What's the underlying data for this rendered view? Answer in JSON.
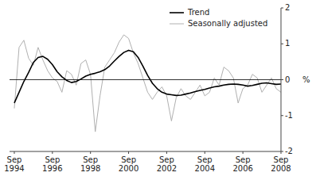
{
  "chart_data": {
    "type": "line",
    "title": "",
    "ylabel": "%",
    "categories": [
      "Sep\n1994",
      null,
      null,
      null,
      null,
      null,
      null,
      null,
      "Sep\n1996",
      null,
      null,
      null,
      null,
      null,
      null,
      null,
      "Sep\n1998",
      null,
      null,
      null,
      null,
      null,
      null,
      null,
      "Sep\n2000",
      null,
      null,
      null,
      null,
      null,
      null,
      null,
      "Sep\n2002",
      null,
      null,
      null,
      null,
      null,
      null,
      null,
      "Sep\n2004",
      null,
      null,
      null,
      null,
      null,
      null,
      null,
      "Sep\n2006",
      null,
      null,
      null,
      null,
      null,
      null,
      null,
      "Sep\n2008"
    ],
    "series": [
      {
        "name": "Trend",
        "color": "#000000",
        "values": [
          -0.65,
          -0.35,
          -0.05,
          0.2,
          0.48,
          0.62,
          0.65,
          0.57,
          0.42,
          0.22,
          0.08,
          -0.02,
          -0.08,
          -0.05,
          0.02,
          0.1,
          0.15,
          0.18,
          0.22,
          0.28,
          0.38,
          0.52,
          0.65,
          0.76,
          0.82,
          0.78,
          0.62,
          0.38,
          0.12,
          -0.1,
          -0.25,
          -0.35,
          -0.4,
          -0.42,
          -0.44,
          -0.43,
          -0.4,
          -0.37,
          -0.33,
          -0.3,
          -0.27,
          -0.23,
          -0.2,
          -0.18,
          -0.15,
          -0.13,
          -0.12,
          -0.13,
          -0.15,
          -0.18,
          -0.16,
          -0.13,
          -0.1,
          -0.09,
          -0.11,
          -0.13,
          -0.12
        ]
      },
      {
        "name": "Seasonally adjusted",
        "color": "#b0b0b0",
        "values": [
          -0.8,
          0.9,
          1.1,
          0.6,
          0.4,
          0.9,
          0.55,
          0.25,
          0.05,
          -0.05,
          -0.35,
          0.25,
          0.15,
          -0.15,
          0.45,
          0.55,
          0.15,
          -1.45,
          -0.45,
          0.35,
          0.55,
          0.75,
          1.05,
          1.25,
          1.15,
          0.75,
          0.45,
          0.05,
          -0.35,
          -0.55,
          -0.35,
          -0.2,
          -0.45,
          -1.15,
          -0.5,
          -0.25,
          -0.45,
          -0.55,
          -0.35,
          -0.15,
          -0.45,
          -0.35,
          0.05,
          -0.15,
          0.35,
          0.25,
          0.05,
          -0.65,
          -0.25,
          -0.15,
          0.15,
          0.05,
          -0.35,
          -0.15,
          0.05,
          -0.25,
          -0.35
        ]
      }
    ],
    "ylim": [
      -2,
      2
    ],
    "yticks": [
      -2,
      -1,
      0,
      1,
      2
    ],
    "grid": false,
    "legend": "upper right"
  }
}
